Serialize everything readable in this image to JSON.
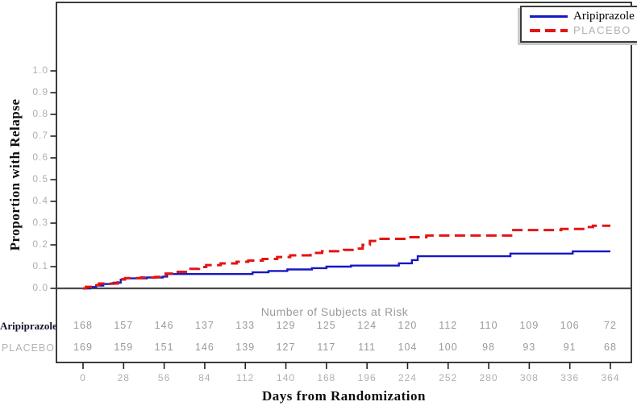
{
  "accent_colors": {
    "aripiprazole_blue": "#1717c4",
    "placebo_red": "#e31515",
    "muted_gray_text": "#b0b0b0",
    "risk_gray_text": "#9a9a9a"
  },
  "legend": {
    "entries": [
      {
        "label": "Aripiprazole",
        "line": "solid",
        "color": "#1717c4"
      },
      {
        "label": "PLACEBO",
        "line": "dashed",
        "color": "#e31515"
      }
    ]
  },
  "chart_data": {
    "type": "line",
    "step": true,
    "title": "",
    "xlabel": "Days from Randomization",
    "ylabel": "Proportion with Relapse",
    "xlim": [
      0,
      364
    ],
    "ylim": [
      0,
      1.3
    ],
    "grid": false,
    "legend_position": "top-right",
    "x_ticks": [
      0,
      28,
      56,
      84,
      112,
      140,
      168,
      196,
      224,
      252,
      280,
      308,
      336,
      364
    ],
    "y_ticks": [
      {
        "label": "0.0",
        "value": 0.0
      },
      {
        "label": "0.1",
        "value": 0.1
      },
      {
        "label": "0.2",
        "value": 0.2
      },
      {
        "label": "0.3",
        "value": 0.3
      },
      {
        "label": "0.4",
        "value": 0.4
      },
      {
        "label": "0.5",
        "value": 0.5
      },
      {
        "label": "0.6",
        "value": 0.6
      },
      {
        "label": "0.7",
        "value": 0.7
      },
      {
        "label": "0.8",
        "value": 0.8
      },
      {
        "label": "0.9",
        "value": 0.9
      },
      {
        "label": "1.0",
        "value": 1.0
      }
    ],
    "series": [
      {
        "name": "Aripiprazole",
        "color": "#1717c4",
        "dash": false,
        "points": [
          [
            0,
            0
          ],
          [
            5,
            0.006
          ],
          [
            9,
            0.013
          ],
          [
            14,
            0.02
          ],
          [
            21,
            0.026
          ],
          [
            26,
            0.04
          ],
          [
            29,
            0.046
          ],
          [
            44,
            0.05
          ],
          [
            55,
            0.054
          ],
          [
            58,
            0.066
          ],
          [
            117,
            0.074
          ],
          [
            128,
            0.08
          ],
          [
            141,
            0.087
          ],
          [
            158,
            0.093
          ],
          [
            168,
            0.1
          ],
          [
            185,
            0.105
          ],
          [
            218,
            0.115
          ],
          [
            227,
            0.13
          ],
          [
            231,
            0.148
          ],
          [
            295,
            0.16
          ],
          [
            338,
            0.17
          ],
          [
            364,
            0.17
          ]
        ]
      },
      {
        "name": "PLACEBO",
        "color": "#e31515",
        "dash": true,
        "points": [
          [
            0,
            0
          ],
          [
            2,
            0.007
          ],
          [
            7,
            0.015
          ],
          [
            11,
            0.022
          ],
          [
            24,
            0.028
          ],
          [
            26,
            0.042
          ],
          [
            29,
            0.047
          ],
          [
            40,
            0.05
          ],
          [
            50,
            0.053
          ],
          [
            57,
            0.068
          ],
          [
            64,
            0.076
          ],
          [
            71,
            0.09
          ],
          [
            80,
            0.098
          ],
          [
            85,
            0.107
          ],
          [
            95,
            0.115
          ],
          [
            106,
            0.122
          ],
          [
            114,
            0.128
          ],
          [
            124,
            0.135
          ],
          [
            134,
            0.144
          ],
          [
            143,
            0.152
          ],
          [
            157,
            0.163
          ],
          [
            165,
            0.171
          ],
          [
            180,
            0.177
          ],
          [
            188,
            0.183
          ],
          [
            193,
            0.2
          ],
          [
            198,
            0.218
          ],
          [
            203,
            0.228
          ],
          [
            226,
            0.235
          ],
          [
            237,
            0.243
          ],
          [
            297,
            0.268
          ],
          [
            330,
            0.273
          ],
          [
            347,
            0.282
          ],
          [
            352,
            0.288
          ],
          [
            364,
            0.288
          ]
        ]
      }
    ]
  },
  "risk_table": {
    "title": "Number of Subjects at Risk",
    "rows": [
      {
        "label": "Aripiprazole",
        "values": [
          168,
          157,
          146,
          137,
          133,
          129,
          125,
          124,
          120,
          112,
          110,
          109,
          106,
          72
        ]
      },
      {
        "label": "PLACEBO",
        "values": [
          169,
          159,
          151,
          146,
          139,
          127,
          117,
          111,
          104,
          100,
          98,
          93,
          91,
          68
        ]
      }
    ]
  }
}
